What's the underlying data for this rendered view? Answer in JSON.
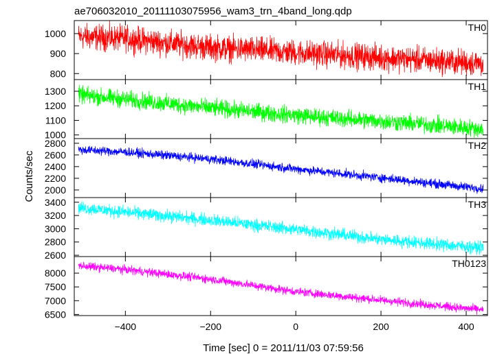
{
  "chart_data": {
    "type": "line",
    "title": "ae706032010_20111103075956_wam3_trn_4band_long.qdp",
    "xlabel": "Time [sec] 0 = 2011/11/03 07:59:56",
    "ylabel": "Counts/sec",
    "xlim": [
      -520,
      450
    ],
    "x_ticks": [
      -400,
      -200,
      0,
      200,
      400
    ],
    "x_tick_labels": [
      "−400",
      "−200",
      "0",
      "200",
      "400"
    ],
    "x_range_data": [
      -510,
      440
    ],
    "panels": [
      {
        "name": "TH0",
        "color": "#ff0000",
        "ylim": [
          770,
          1065
        ],
        "y_ticks": [
          800,
          900,
          1000
        ],
        "trend": [
          [
            -510,
            985
          ],
          [
            -400,
            975
          ],
          [
            -200,
            930
          ],
          [
            0,
            905
          ],
          [
            200,
            880
          ],
          [
            400,
            855
          ],
          [
            440,
            850
          ]
        ],
        "noise": 55
      },
      {
        "name": "TH1",
        "color": "#00ff00",
        "ylim": [
          975,
          1380
        ],
        "y_ticks": [
          1000,
          1100,
          1200,
          1300
        ],
        "trend": [
          [
            -510,
            1275
          ],
          [
            -400,
            1245
          ],
          [
            -200,
            1185
          ],
          [
            0,
            1135
          ],
          [
            200,
            1095
          ],
          [
            400,
            1050
          ],
          [
            440,
            1040
          ]
        ],
        "noise": 50
      },
      {
        "name": "TH2",
        "color": "#0000ff",
        "ylim": [
          1870,
          2880
        ],
        "y_ticks": [
          2000,
          2200,
          2400,
          2600,
          2800
        ],
        "trend": [
          [
            -510,
            2690
          ],
          [
            -400,
            2650
          ],
          [
            -200,
            2530
          ],
          [
            0,
            2360
          ],
          [
            200,
            2210
          ],
          [
            400,
            2050
          ],
          [
            440,
            2025
          ]
        ],
        "noise": 65
      },
      {
        "name": "TH3",
        "color": "#00ffff",
        "ylim": [
          2580,
          3470
        ],
        "y_ticks": [
          2600,
          2800,
          3000,
          3200,
          3400
        ],
        "trend": [
          [
            -510,
            3320
          ],
          [
            -400,
            3250
          ],
          [
            -200,
            3130
          ],
          [
            0,
            2990
          ],
          [
            200,
            2840
          ],
          [
            400,
            2730
          ],
          [
            440,
            2715
          ]
        ],
        "noise": 80
      },
      {
        "name": "TH0123",
        "color": "#ff00ff",
        "ylim": [
          6460,
          8600
        ],
        "y_ticks": [
          6500,
          7000,
          7500,
          8000
        ],
        "y_tick_labels": [
          "6500",
          "7000",
          "7500",
          "8000"
        ],
        "trend": [
          [
            -510,
            8270
          ],
          [
            -400,
            8130
          ],
          [
            -200,
            7780
          ],
          [
            0,
            7330
          ],
          [
            200,
            7020
          ],
          [
            400,
            6720
          ],
          [
            440,
            6680
          ]
        ],
        "noise": 130
      }
    ],
    "grid": false,
    "legend": "none"
  }
}
